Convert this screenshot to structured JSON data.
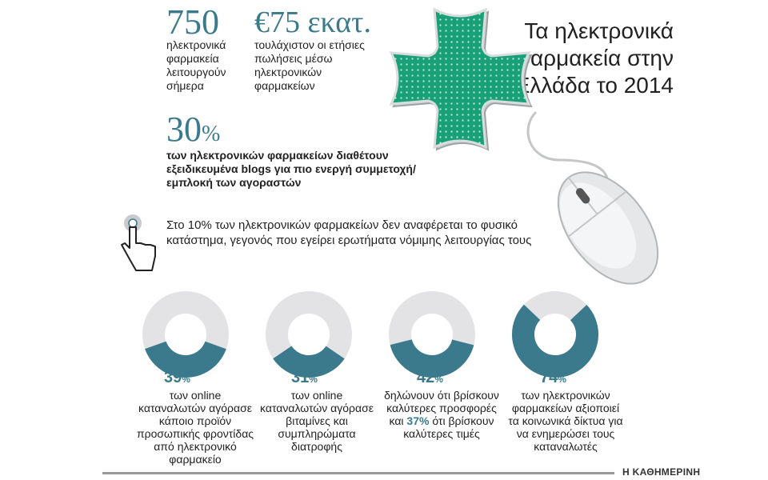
{
  "title": "Τα ηλεκτρονικά φαρμακεία στην Ελλάδα το 2014",
  "top_stats": [
    {
      "value": "750",
      "text": "ηλεκτρονικά φαρμακεία λειτουργούν σήμερα"
    },
    {
      "value": "€75 εκατ.",
      "text": "τουλάχιστον οι ετήσιες πωλήσεις μέσω ηλεκτρονικών φαρμακείων"
    }
  ],
  "blogs_stat": {
    "value": "30",
    "unit": "%",
    "text": "των ηλεκτρονικών φαρμακείων διαθέτουν εξειδικευμένα blogs για πιο ενεργή συμμετοχή/ εμπλοκή των αγοραστών"
  },
  "store_note": "Στο 10% των ηλεκτρονικών φαρμακείων δεν αναφέρεται το φυσικό κατάστημα, γεγονός που εγείρει ερωτήματα νόμιμης λειτουργίας τους",
  "chart_data": {
    "type": "pie",
    "colors": {
      "filled": "#3a7a8c",
      "remainder": "#e3e3e6"
    },
    "slices": [
      {
        "value": 39,
        "unit": "%",
        "description": "των online καταναλωτών αγόρασε κάποιο προϊόν προσωπικής φροντίδας από ηλεκτρονικό φαρμακείο"
      },
      {
        "value": 31,
        "unit": "%",
        "description": "των online καταναλωτών αγόρασε βιταμίνες και συμπληρώματα διατροφής"
      },
      {
        "value": 42,
        "unit": "%",
        "description_before": "δηλώνουν ότι βρίσκουν καλύτερες προσφορές και",
        "inline_value": "37%",
        "description_after": "ότι βρίσκουν καλύτερες τιμές"
      },
      {
        "value": 74,
        "unit": "%",
        "description": "των ηλεκτρονικών φαρμακείων αξιοποιεί τα κοινωνικά δίκτυα για να ενημερώσει τους καταναλωτές"
      }
    ]
  },
  "footer": {
    "brand": "Η ΚΑΘΗΜΕΡΙΝΗ"
  },
  "icons": {
    "pharmacy": "pharmacy-cross-icon",
    "mouse": "computer-mouse-icon",
    "cursor": "hand-cursor-icon"
  }
}
